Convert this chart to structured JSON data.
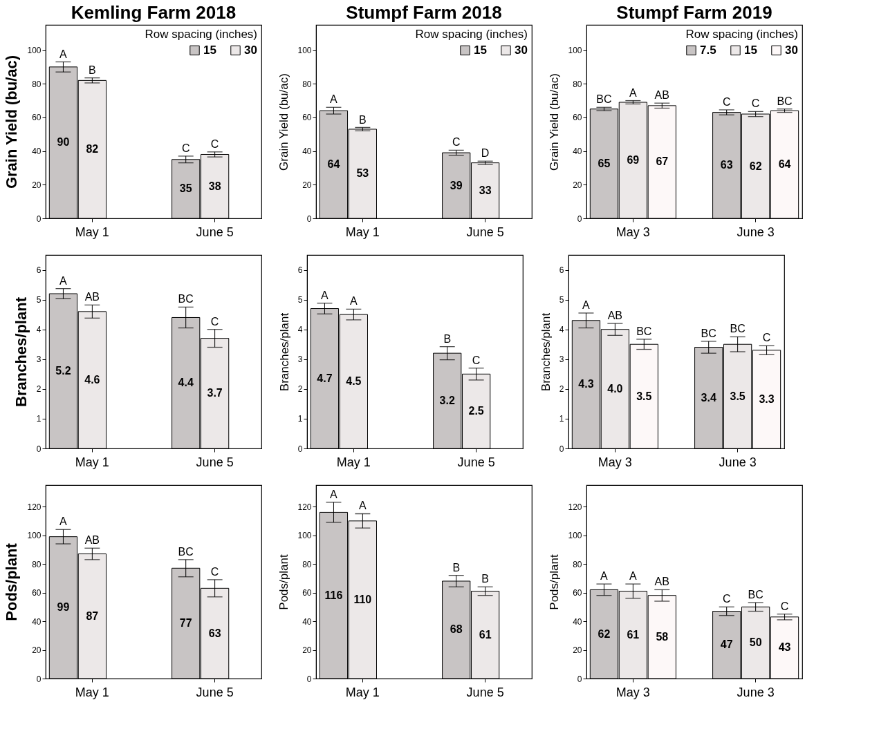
{
  "chart_data": [
    {
      "type": "bar",
      "title": "Kemling Farm 2018",
      "ylabel": "Grain Yield (bu/ac)",
      "legend_title": "Row spacing (inches)",
      "legend": "top right",
      "categories": [
        "May 1",
        "June 5"
      ],
      "ylim": [
        0,
        115
      ],
      "yticks": [
        0,
        20,
        40,
        60,
        80,
        100
      ],
      "data_labels": true,
      "series": [
        {
          "name": "15",
          "color": "#c8c4c4",
          "values": [
            90,
            35
          ],
          "errors": [
            3,
            2
          ]
        },
        {
          "name": "30",
          "color": "#ece8e8",
          "values": [
            82,
            38
          ],
          "errors": [
            1.5,
            1.5
          ]
        }
      ],
      "annotations": [
        "A",
        "B",
        "C",
        "C"
      ]
    },
    {
      "type": "bar",
      "title": "Stumpf Farm 2018",
      "ylabel": "Grain Yield (bu/ac)",
      "legend_title": "Row spacing (inches)",
      "legend": "top right",
      "categories": [
        "May 1",
        "June 5"
      ],
      "ylim": [
        0,
        115
      ],
      "yticks": [
        0,
        20,
        40,
        60,
        80,
        100
      ],
      "data_labels": true,
      "series": [
        {
          "name": "15",
          "color": "#c8c4c4",
          "values": [
            64,
            39
          ],
          "errors": [
            2,
            1.5
          ]
        },
        {
          "name": "30",
          "color": "#ece8e8",
          "values": [
            53,
            33
          ],
          "errors": [
            1,
            1
          ]
        }
      ],
      "annotations": [
        "A",
        "B",
        "C",
        "D"
      ]
    },
    {
      "type": "bar",
      "title": "Stumpf Farm 2019",
      "ylabel": "Grain Yield (bu/ac)",
      "legend_title": "Row spacing (inches)",
      "legend": "top right",
      "categories": [
        "May 3",
        "June 3"
      ],
      "ylim": [
        0,
        115
      ],
      "yticks": [
        0,
        20,
        40,
        60,
        80,
        100
      ],
      "data_labels": true,
      "series": [
        {
          "name": "7.5",
          "color": "#c8c4c4",
          "values": [
            65,
            63
          ],
          "errors": [
            1,
            1.5
          ]
        },
        {
          "name": "15",
          "color": "#ece8e8",
          "values": [
            69,
            62
          ],
          "errors": [
            1,
            1.5
          ]
        },
        {
          "name": "30",
          "color": "#fdf8f8",
          "values": [
            67,
            64
          ],
          "errors": [
            1.5,
            1
          ]
        }
      ],
      "annotations": [
        "BC",
        "A",
        "AB",
        "C",
        "C",
        "BC"
      ]
    },
    {
      "type": "bar",
      "ylabel": "Branches/plant",
      "categories": [
        "May 1",
        "June 5"
      ],
      "ylim": [
        0,
        6.5
      ],
      "yticks": [
        0,
        1,
        2,
        3,
        4,
        5,
        6
      ],
      "data_labels": true,
      "series": [
        {
          "color": "#c8c4c4",
          "values": [
            5.2,
            4.4
          ],
          "errors": [
            0.17,
            0.35
          ]
        },
        {
          "color": "#ece8e8",
          "values": [
            4.6,
            3.7
          ],
          "errors": [
            0.22,
            0.3
          ]
        }
      ],
      "annotations": [
        "A",
        "AB",
        "BC",
        "C"
      ]
    },
    {
      "type": "bar",
      "ylabel": "Branches/plant",
      "categories": [
        "May 1",
        "June 5"
      ],
      "ylim": [
        0,
        6.5
      ],
      "yticks": [
        0,
        1,
        2,
        3,
        4,
        5,
        6
      ],
      "data_labels": true,
      "series": [
        {
          "color": "#c8c4c4",
          "values": [
            4.7,
            3.2
          ],
          "errors": [
            0.18,
            0.22
          ]
        },
        {
          "color": "#ece8e8",
          "values": [
            4.5,
            2.5
          ],
          "errors": [
            0.18,
            0.2
          ]
        }
      ],
      "annotations": [
        "A",
        "A",
        "B",
        "C"
      ]
    },
    {
      "type": "bar",
      "ylabel": "Branches/plant",
      "categories": [
        "May 3",
        "June 3"
      ],
      "ylim": [
        0,
        6.5
      ],
      "yticks": [
        0,
        1,
        2,
        3,
        4,
        5,
        6
      ],
      "data_labels": true,
      "series": [
        {
          "color": "#c8c4c4",
          "values": [
            4.3,
            3.4
          ],
          "errors": [
            0.25,
            0.2
          ]
        },
        {
          "color": "#ece8e8",
          "values": [
            4.0,
            3.5
          ],
          "errors": [
            0.2,
            0.25
          ],
          "value_labels": [
            "4.0",
            "3.5"
          ]
        },
        {
          "color": "#fdf8f8",
          "values": [
            3.5,
            3.3
          ],
          "errors": [
            0.17,
            0.15
          ]
        }
      ],
      "annotations": [
        "A",
        "AB",
        "BC",
        "BC",
        "BC",
        "C"
      ]
    },
    {
      "type": "bar",
      "ylabel": "Pods/plant",
      "categories": [
        "May 1",
        "June 5"
      ],
      "ylim": [
        0,
        135
      ],
      "yticks": [
        0,
        20,
        40,
        60,
        80,
        100,
        120
      ],
      "data_labels": true,
      "series": [
        {
          "color": "#c8c4c4",
          "values": [
            99,
            77
          ],
          "errors": [
            5,
            6
          ]
        },
        {
          "color": "#ece8e8",
          "values": [
            87,
            63
          ],
          "errors": [
            4,
            6
          ]
        }
      ],
      "annotations": [
        "A",
        "AB",
        "BC",
        "C"
      ]
    },
    {
      "type": "bar",
      "ylabel": "Pods/plant",
      "categories": [
        "May 1",
        "June 5"
      ],
      "ylim": [
        0,
        135
      ],
      "yticks": [
        0,
        20,
        40,
        60,
        80,
        100,
        120
      ],
      "data_labels": true,
      "series": [
        {
          "color": "#c8c4c4",
          "values": [
            116,
            68
          ],
          "errors": [
            7,
            4
          ]
        },
        {
          "color": "#ece8e8",
          "values": [
            110,
            61
          ],
          "errors": [
            5,
            3
          ]
        }
      ],
      "annotations": [
        "A",
        "A",
        "B",
        "B"
      ]
    },
    {
      "type": "bar",
      "ylabel": "Pods/plant",
      "categories": [
        "May 3",
        "June 3"
      ],
      "ylim": [
        0,
        135
      ],
      "yticks": [
        0,
        20,
        40,
        60,
        80,
        100,
        120
      ],
      "data_labels": true,
      "series": [
        {
          "color": "#c8c4c4",
          "values": [
            62,
            47
          ],
          "errors": [
            4,
            3
          ]
        },
        {
          "color": "#ece8e8",
          "values": [
            61,
            50
          ],
          "errors": [
            5,
            3
          ]
        },
        {
          "color": "#fdf8f8",
          "values": [
            58,
            43
          ],
          "errors": [
            4,
            2
          ]
        }
      ],
      "annotations": [
        "A",
        "A",
        "AB",
        "C",
        "BC",
        "C"
      ]
    }
  ]
}
